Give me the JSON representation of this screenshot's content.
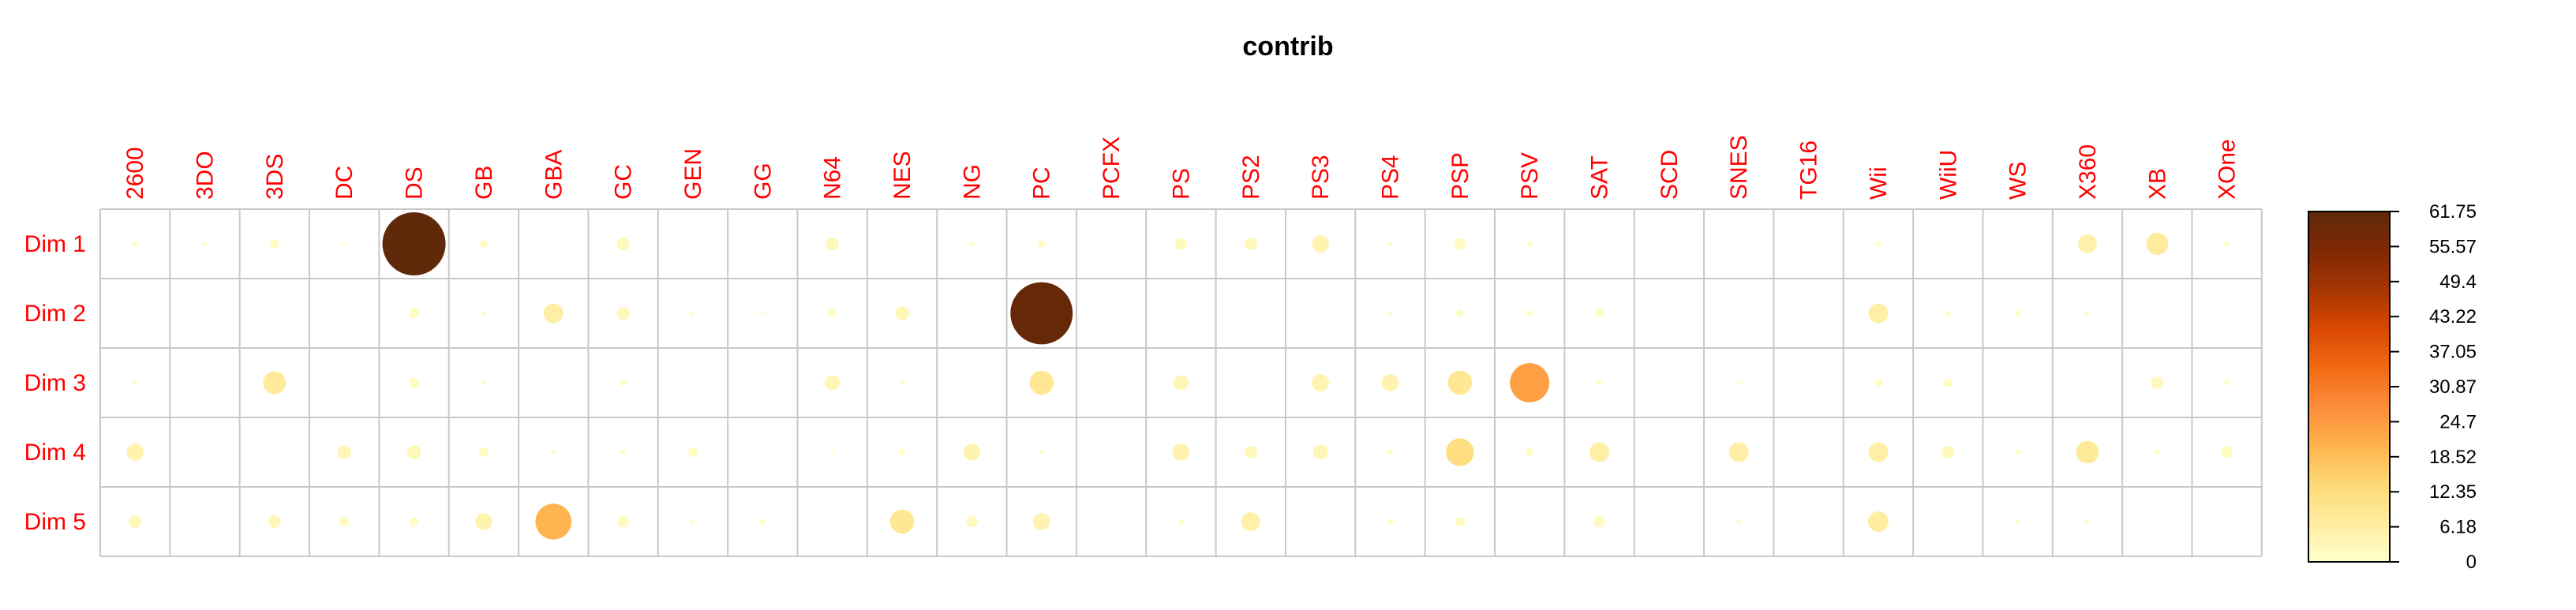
{
  "chart_data": {
    "type": "heatmap",
    "title": "contrib",
    "columns": [
      "2600",
      "3DO",
      "3DS",
      "DC",
      "DS",
      "GB",
      "GBA",
      "GC",
      "GEN",
      "GG",
      "N64",
      "NES",
      "NG",
      "PC",
      "PCFX",
      "PS",
      "PS2",
      "PS3",
      "PS4",
      "PSP",
      "PSV",
      "SAT",
      "SCD",
      "SNES",
      "TG16",
      "Wii",
      "WiiU",
      "WS",
      "X360",
      "XB",
      "XOne"
    ],
    "rows": [
      "Dim 1",
      "Dim 2",
      "Dim 3",
      "Dim 4",
      "Dim 5"
    ],
    "values": [
      [
        0.5,
        0.3,
        1.2,
        0.2,
        61.75,
        1.0,
        0.0,
        2.5,
        0.0,
        0.0,
        2.5,
        0.0,
        0.4,
        0.8,
        0.0,
        2.2,
        2.5,
        4.5,
        0.3,
        2.0,
        0.4,
        0.0,
        0.0,
        0.0,
        0.0,
        0.6,
        0.0,
        0.0,
        5.5,
        7.5,
        0.6
      ],
      [
        0.0,
        0.0,
        0.0,
        0.0,
        1.5,
        0.4,
        6.0,
        2.5,
        0.3,
        0.2,
        1.2,
        3.0,
        0.0,
        60.0,
        0.0,
        0.0,
        0.0,
        0.0,
        0.2,
        0.9,
        0.6,
        1.2,
        0.0,
        0.0,
        0.0,
        6.0,
        0.5,
        0.6,
        0.3,
        0.0,
        0.0
      ],
      [
        0.3,
        0.0,
        8.0,
        0.0,
        1.5,
        0.4,
        0.0,
        0.7,
        0.0,
        0.0,
        3.5,
        0.3,
        0.0,
        9.0,
        0.0,
        3.5,
        0.0,
        4.5,
        4.5,
        9.0,
        24.0,
        0.5,
        0.0,
        0.3,
        0.0,
        1.0,
        1.2,
        0.0,
        0.0,
        2.5,
        0.5
      ],
      [
        4.5,
        0.0,
        0.0,
        3.0,
        3.0,
        1.5,
        0.3,
        0.5,
        1.5,
        0.0,
        0.2,
        0.7,
        4.5,
        0.3,
        0.0,
        4.5,
        2.5,
        3.5,
        0.5,
        12.0,
        0.9,
        6.0,
        0.0,
        6.0,
        0.0,
        6.0,
        2.5,
        0.6,
        8.0,
        0.6,
        2.0
      ],
      [
        2.5,
        0.0,
        2.5,
        1.5,
        1.2,
        4.5,
        20.0,
        2.0,
        0.3,
        0.6,
        0.0,
        9.0,
        2.0,
        4.5,
        0.0,
        0.5,
        5.5,
        0.0,
        0.6,
        1.5,
        0.0,
        2.0,
        0.0,
        0.4,
        0.0,
        6.5,
        0.0,
        0.3,
        0.3,
        0.0,
        0.0
      ]
    ],
    "colorbar": {
      "min": 0,
      "max": 61.75,
      "ticks": [
        "61.75",
        "55.57",
        "49.4",
        "43.22",
        "37.05",
        "30.87",
        "24.7",
        "18.52",
        "12.35",
        "6.18",
        "0"
      ],
      "colors": [
        "#ffffcc",
        "#ffeda0",
        "#fed976",
        "#feb24c",
        "#fd8d3c",
        "#f16913",
        "#d94801",
        "#a63603",
        "#7f2704",
        "#5e2a0a"
      ]
    },
    "grid": true,
    "legend": "right"
  }
}
